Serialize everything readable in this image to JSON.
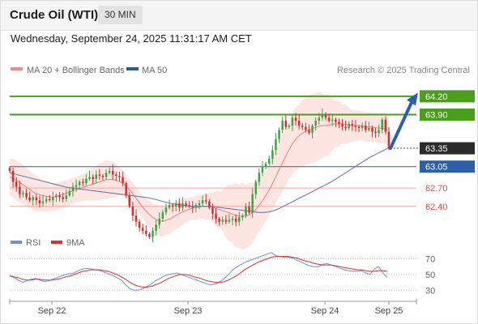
{
  "header": {
    "title": "Crude Oil (WTI)",
    "timeframe": "30 MIN"
  },
  "datetime": "Wednesday, September 24, 2025 11:31:17 AM CET",
  "legend": {
    "ma20": "MA 20 + Bollinger Bands",
    "ma50": "MA 50"
  },
  "copyright": "Research © 2025 Trading Central",
  "colors": {
    "green": "#4a9e1c",
    "blue": "#2d5fa8",
    "red": "#e24b4b",
    "up": "#43a047",
    "down": "#d32f2f",
    "band": "#fde2de",
    "ma20": "#f07f7f",
    "ma50": "#5a6ea8",
    "rsi": "#6f8fd8",
    "rsi_ma": "#d93030",
    "price": "#2b2b2b"
  },
  "chart_data": [
    {
      "type": "candlestick",
      "x_labels": [
        "Sep 22",
        "Sep 23",
        "Sep 24",
        "Sep 25"
      ],
      "ylim": [
        62.0,
        64.45
      ],
      "levels": [
        {
          "label": "64.20",
          "value": 64.2,
          "kind": "resistance"
        },
        {
          "label": "63.90",
          "value": 63.9,
          "kind": "resistance"
        },
        {
          "label": "63.35",
          "value": 63.35,
          "kind": "last"
        },
        {
          "label": "63.05",
          "value": 63.05,
          "kind": "pivot"
        },
        {
          "label": "62.70",
          "value": 62.7,
          "kind": "support"
        },
        {
          "label": "62.40",
          "value": 62.4,
          "kind": "support"
        }
      ],
      "close": [
        62.98,
        62.8,
        62.72,
        62.6,
        62.62,
        62.55,
        62.5,
        62.55,
        62.5,
        62.45,
        62.48,
        62.52,
        62.5,
        62.55,
        62.58,
        62.55,
        62.52,
        62.58,
        62.65,
        62.72,
        62.75,
        62.8,
        62.78,
        62.85,
        62.88,
        62.85,
        62.92,
        62.9,
        62.88,
        62.95,
        62.98,
        62.92,
        62.9,
        62.88,
        62.78,
        62.58,
        62.4,
        62.25,
        62.15,
        62.05,
        62.0,
        61.95,
        61.9,
        62.0,
        62.1,
        62.2,
        62.3,
        62.38,
        62.42,
        62.4,
        62.45,
        62.38,
        62.45,
        62.42,
        62.4,
        62.38,
        62.42,
        62.45,
        62.5,
        62.48,
        62.38,
        62.28,
        62.2,
        62.15,
        62.18,
        62.15,
        62.18,
        62.2,
        62.15,
        62.22,
        62.25,
        62.4,
        62.3,
        62.6,
        62.8,
        62.95,
        63.05,
        63.1,
        63.18,
        63.32,
        63.5,
        63.65,
        63.8,
        63.7,
        63.72,
        63.85,
        63.8,
        63.72,
        63.7,
        63.65,
        63.6,
        63.72,
        63.8,
        63.85,
        63.9,
        63.85,
        63.8,
        63.82,
        63.78,
        63.75,
        63.7,
        63.68,
        63.75,
        63.72,
        63.7,
        63.68,
        63.72,
        63.65,
        63.68,
        63.62,
        63.6,
        63.65,
        63.82,
        63.62,
        63.35
      ],
      "ma20": [
        62.88,
        62.86,
        62.82,
        62.78,
        62.74,
        62.7,
        62.66,
        62.62,
        62.6,
        62.58,
        62.57,
        62.56,
        62.55,
        62.56,
        62.58,
        62.6,
        62.62,
        62.64,
        62.66,
        62.68,
        62.7,
        62.72,
        62.74,
        62.76,
        62.78,
        62.8,
        62.82,
        62.84,
        62.84,
        62.84,
        62.82,
        62.8,
        62.76,
        62.7,
        62.64,
        62.56,
        62.48,
        62.4,
        62.33,
        62.27,
        62.22,
        62.18,
        62.16,
        62.16,
        62.18,
        62.2,
        62.24,
        62.27,
        62.3,
        62.33,
        62.35,
        62.37,
        62.38,
        62.39,
        62.4,
        62.4,
        62.4,
        62.38,
        62.36,
        62.34,
        62.32,
        62.3,
        62.28,
        62.26,
        62.24,
        62.24,
        62.24,
        62.26,
        62.3,
        62.36,
        62.44,
        62.52,
        62.62,
        62.72,
        62.84,
        62.96,
        63.08,
        63.2,
        63.32,
        63.42,
        63.5,
        63.56,
        63.6,
        63.64,
        63.66,
        63.68,
        63.7,
        63.72,
        63.72,
        63.73,
        63.74,
        63.75,
        63.75,
        63.75,
        63.74,
        63.73,
        63.72,
        63.72,
        63.72,
        63.71,
        63.7,
        63.7,
        63.69,
        63.68,
        63.68,
        63.67,
        63.65
      ],
      "ma50": [
        62.95,
        62.93,
        62.91,
        62.89,
        62.87,
        62.85,
        62.83,
        62.81,
        62.79,
        62.77,
        62.75,
        62.73,
        62.71,
        62.7,
        62.69,
        62.68,
        62.67,
        62.66,
        62.65,
        62.64,
        62.63,
        62.62,
        62.61,
        62.6,
        62.59,
        62.58,
        62.57,
        62.56,
        62.55,
        62.54,
        62.52,
        62.5,
        62.48,
        62.46,
        62.44,
        62.43,
        62.42,
        62.41,
        62.4,
        62.4,
        62.4,
        62.4,
        62.4,
        62.39,
        62.38,
        62.37,
        62.36,
        62.35,
        62.34,
        62.33,
        62.32,
        62.31,
        62.3,
        62.3,
        62.31,
        62.33,
        62.36,
        62.4,
        62.44,
        62.48,
        62.52,
        62.56,
        62.6,
        62.64,
        62.68,
        62.72,
        62.76,
        62.8,
        62.85,
        62.9,
        62.95,
        63.0,
        63.05,
        63.1,
        63.15,
        63.2,
        63.24,
        63.28,
        63.32,
        63.36
      ],
      "bollinger_width": [
        0.3,
        0.32,
        0.33,
        0.32,
        0.3,
        0.28,
        0.26,
        0.24,
        0.23,
        0.22,
        0.21,
        0.21,
        0.21,
        0.22,
        0.24,
        0.27,
        0.3,
        0.32,
        0.3,
        0.26,
        0.22,
        0.18,
        0.18,
        0.18,
        0.2,
        0.22,
        0.24,
        0.25,
        0.24,
        0.23,
        0.22,
        0.2,
        0.19,
        0.19,
        0.2,
        0.22,
        0.25,
        0.3,
        0.38,
        0.46,
        0.52,
        0.55,
        0.52,
        0.48,
        0.44,
        0.42,
        0.42,
        0.44,
        0.46,
        0.48,
        0.5,
        0.52,
        0.55,
        0.56,
        0.56,
        0.55,
        0.5,
        0.44,
        0.38,
        0.32,
        0.28,
        0.25,
        0.24,
        0.24,
        0.24,
        0.24,
        0.25,
        0.26
      ]
    },
    {
      "type": "line",
      "legend": [
        "RSI",
        "9MA"
      ],
      "ylim": [
        20,
        85
      ],
      "ticks": [
        70,
        50,
        30
      ],
      "series": [
        {
          "name": "RSI",
          "values": [
            49,
            46,
            43,
            40,
            42,
            44,
            45,
            43,
            41,
            42,
            44,
            46,
            48,
            50,
            51,
            52,
            55,
            57,
            58,
            57,
            56,
            55,
            53,
            51,
            49,
            46,
            43,
            37,
            32,
            30,
            30,
            32,
            35,
            38,
            42,
            45,
            48,
            50,
            51,
            52,
            50,
            48,
            46,
            44,
            42,
            40,
            38,
            37,
            38,
            41,
            45,
            50,
            56,
            60,
            63,
            66,
            68,
            70,
            72,
            74,
            76,
            78,
            74,
            73,
            72,
            72,
            71,
            68,
            66,
            63,
            61,
            60,
            60,
            63,
            64,
            62,
            60,
            58,
            56,
            55,
            54,
            54,
            55,
            52,
            50,
            57,
            60,
            52,
            46
          ]
        },
        {
          "name": "9MA",
          "values": [
            48,
            47,
            46,
            44,
            43,
            43,
            44,
            44,
            43,
            43,
            43,
            44,
            45,
            47,
            48,
            50,
            52,
            54,
            55,
            56,
            56,
            56,
            55,
            54,
            52,
            50,
            47,
            44,
            40,
            37,
            35,
            34,
            34,
            35,
            37,
            39,
            42,
            45,
            47,
            49,
            50,
            50,
            49,
            47,
            46,
            44,
            42,
            41,
            40,
            40,
            41,
            43,
            46,
            49,
            53,
            57,
            60,
            63,
            66,
            68,
            70,
            72,
            73,
            73,
            73,
            73,
            72,
            71,
            69,
            67,
            66,
            64,
            63,
            62,
            62,
            62,
            61,
            60,
            59,
            58,
            57,
            56,
            56,
            55,
            54,
            54,
            55,
            55,
            54
          ]
        }
      ]
    }
  ]
}
